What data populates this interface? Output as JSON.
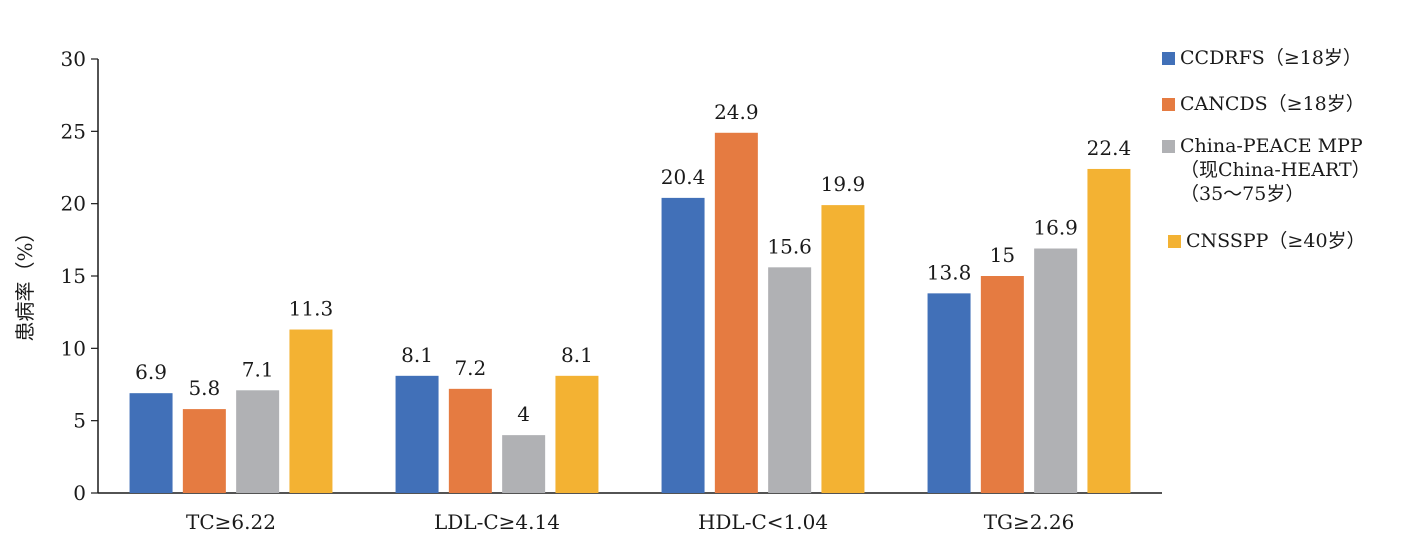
{
  "chart_data": {
    "type": "bar",
    "title": "",
    "xlabel": "",
    "ylabel": "患病率（%）",
    "ylim": [
      0,
      30
    ],
    "yticks": [
      0,
      5,
      10,
      15,
      20,
      25,
      30
    ],
    "grid": false,
    "legend_position": "right",
    "categories": [
      "TC≥6.22",
      "LDL-C≥4.14",
      "HDL-C<1.04",
      "TG≥2.26"
    ],
    "series": [
      {
        "name": "CCDRFS（≥18岁）",
        "color": "#4170b8",
        "values": [
          6.9,
          8.1,
          20.4,
          13.8
        ],
        "labels": [
          "6.9",
          "8.1",
          "20.4",
          "13.8"
        ]
      },
      {
        "name": "CANCDS（≥18岁）",
        "color": "#e57b41",
        "values": [
          5.8,
          7.2,
          24.9,
          15
        ],
        "labels": [
          "5.8",
          "7.2",
          "24.9",
          "15"
        ]
      },
      {
        "name": "China-PEACE MPP（现China-HEART）（35～75岁）",
        "color": "#b0b1b4",
        "values": [
          7.1,
          4,
          15.6,
          16.9
        ],
        "labels": [
          "7.1",
          "4",
          "15.6",
          "16.9"
        ]
      },
      {
        "name": "CNSSPP（≥40岁）",
        "color": "#f3b233",
        "values": [
          11.3,
          8.1,
          19.9,
          22.4
        ],
        "labels": [
          "11.3",
          "8.1",
          "19.9",
          "22.4"
        ]
      }
    ]
  },
  "legend": [
    {
      "lines": [
        "CCDRFS（≥18岁）"
      ]
    },
    {
      "lines": [
        "CANCDS（≥18岁）"
      ]
    },
    {
      "lines": [
        "China-PEACE MPP",
        "（现China-HEART）",
        "（35～75岁）"
      ]
    },
    {
      "lines": [
        "CNSSPP（≥40岁）"
      ]
    }
  ]
}
